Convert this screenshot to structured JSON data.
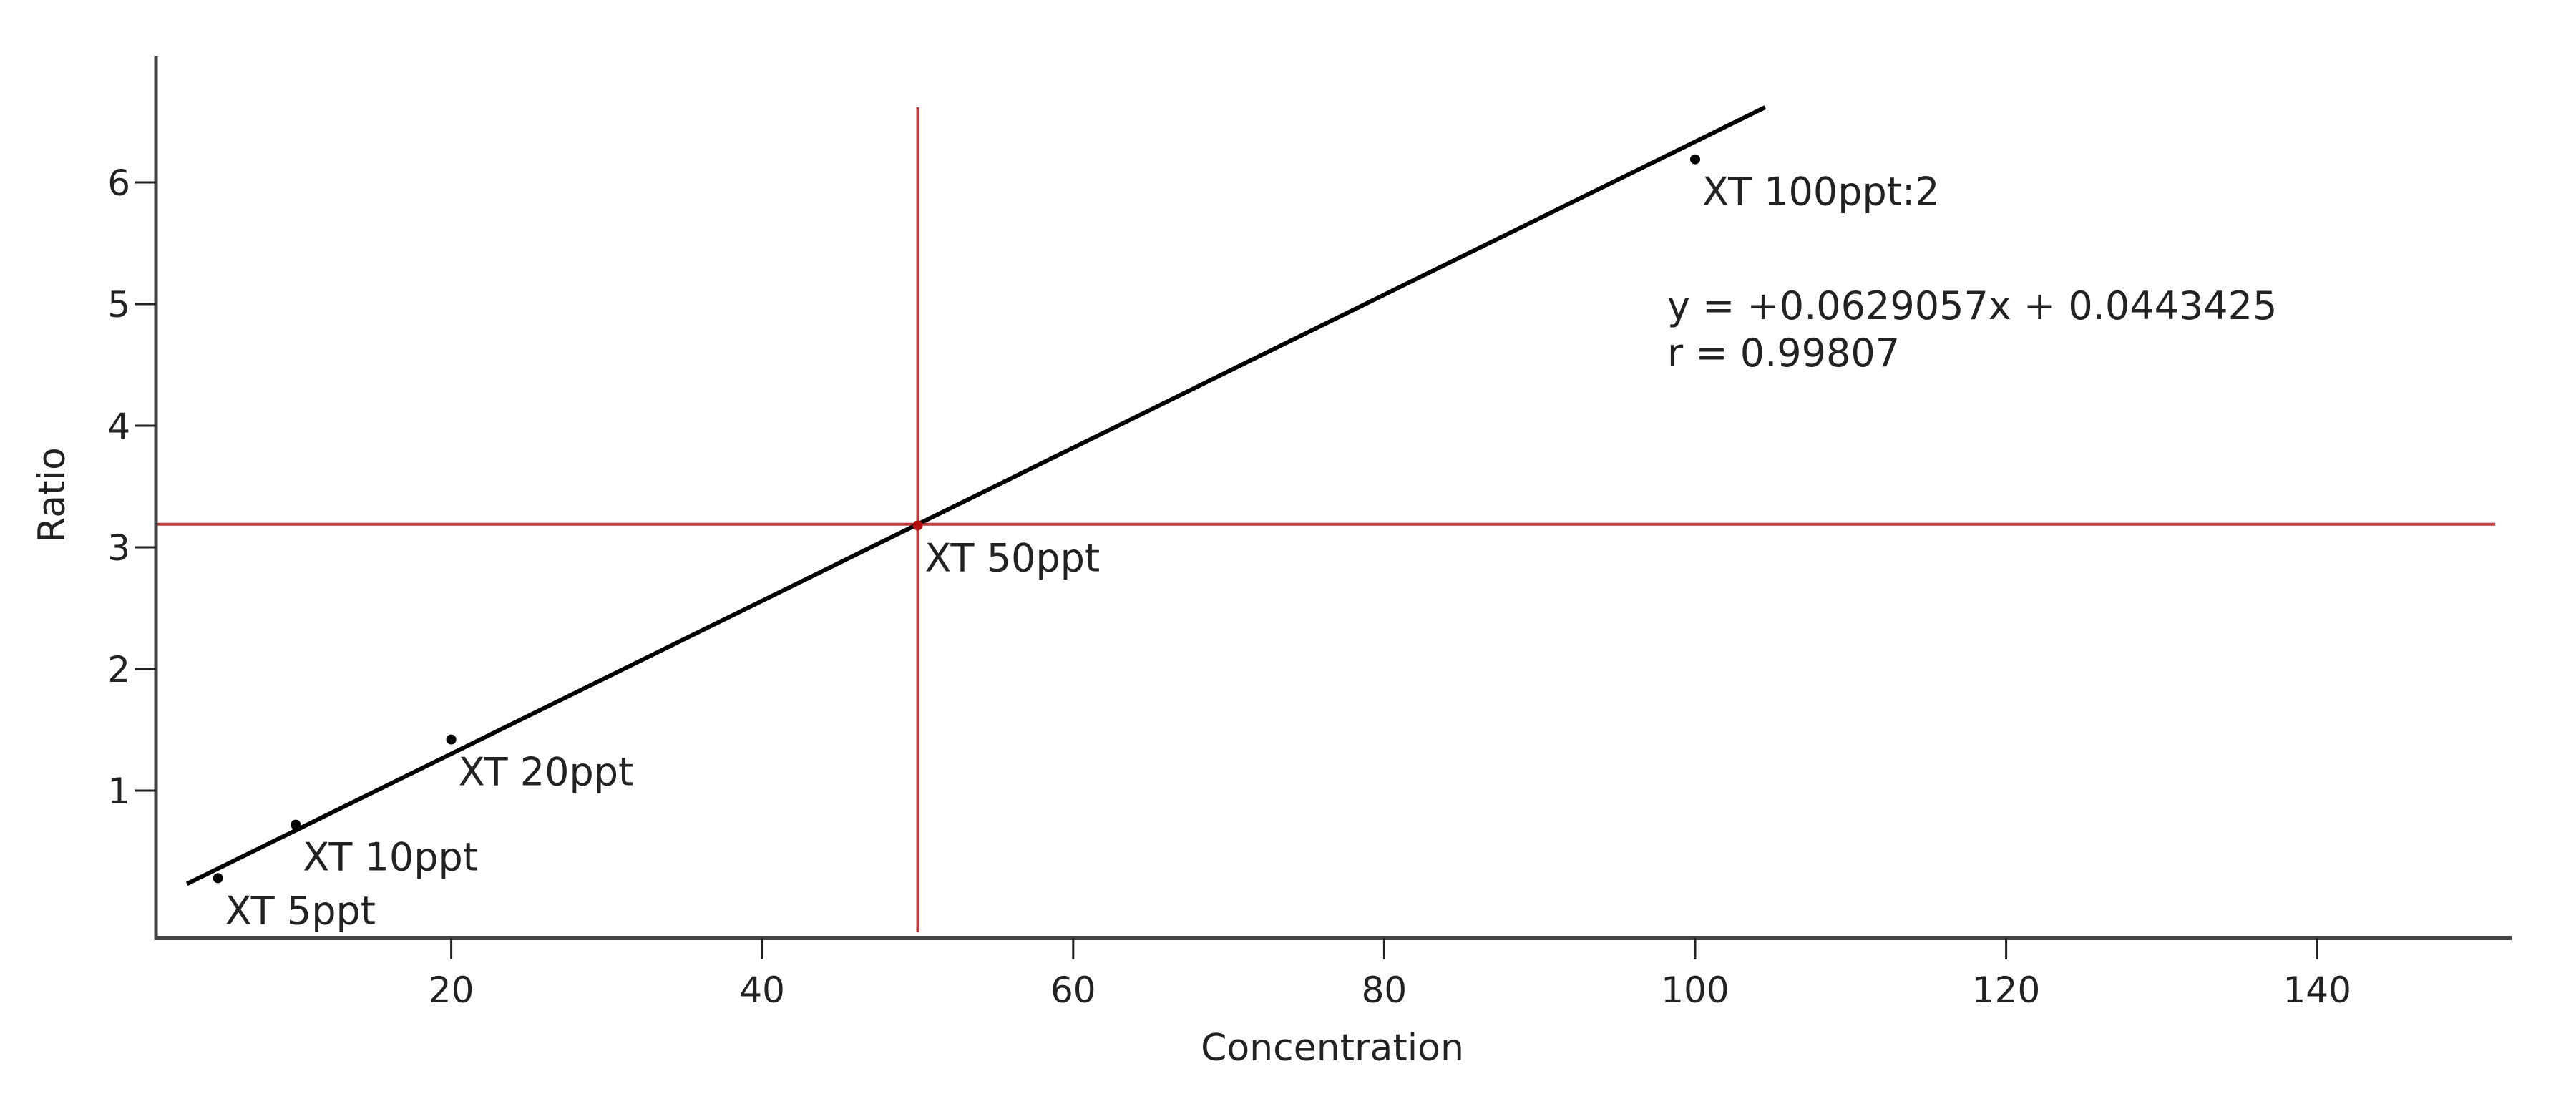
{
  "chart_data": {
    "type": "scatter",
    "title": "",
    "xlabel": "Concentration",
    "ylabel": "Ratio",
    "xlim": [
      2,
      152
    ],
    "ylim": [
      -0.2,
      7.0
    ],
    "x_ticks": [
      20,
      40,
      60,
      80,
      100,
      120,
      140
    ],
    "y_ticks": [
      1,
      2,
      3,
      4,
      5,
      6
    ],
    "grid": false,
    "legend": null,
    "points": [
      {
        "label": "XT 5ppt",
        "x": 5,
        "y": 0.28
      },
      {
        "label": "XT 10ppt",
        "x": 10,
        "y": 0.72
      },
      {
        "label": "XT 20ppt",
        "x": 20,
        "y": 1.42
      },
      {
        "label": "XT 50ppt",
        "x": 50,
        "y": 3.18
      },
      {
        "label": "XT 100ppt:2",
        "x": 100,
        "y": 6.19
      }
    ],
    "fit_line": {
      "slope": 0.0629057,
      "intercept": 0.0443425,
      "x_range": [
        3,
        104.5
      ],
      "color": "#000000"
    },
    "crosshair": {
      "x": 50,
      "y": 3.19,
      "color": "#c0393b"
    },
    "annotations": {
      "equation": "y = +0.0629057x + 0.0443425",
      "r": "r = 0.99807"
    }
  }
}
